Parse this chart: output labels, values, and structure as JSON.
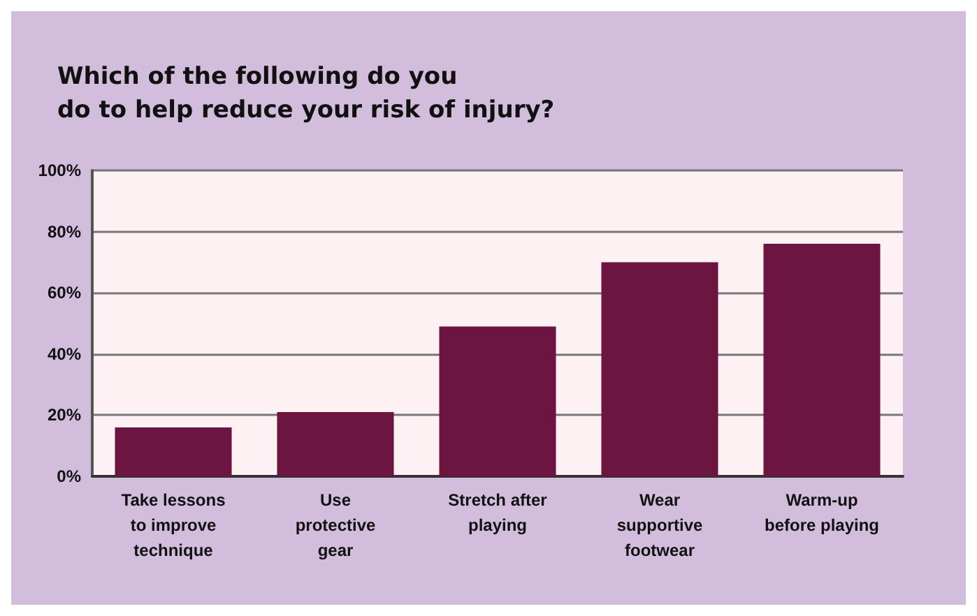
{
  "chart_data": {
    "type": "bar",
    "title": "Which of the following do you\ndo to help reduce your risk of injury?",
    "categories": [
      "Take lessons\nto improve\ntechnique",
      "Use\nprotective\ngear",
      "Stretch after\nplaying",
      "Wear\nsupportive\nfootwear",
      "Warm-up\nbefore playing"
    ],
    "values": [
      16,
      21,
      49,
      70,
      76
    ],
    "color": "#6b1540",
    "ylim": [
      0,
      100
    ],
    "yticks": [
      {
        "value": 0,
        "label": "0%"
      },
      {
        "value": 20,
        "label": "20%"
      },
      {
        "value": 40,
        "label": "40%"
      },
      {
        "value": 60,
        "label": "60%"
      },
      {
        "value": 80,
        "label": "80%"
      },
      {
        "value": 100,
        "label": "100%"
      }
    ],
    "grid": "y"
  }
}
